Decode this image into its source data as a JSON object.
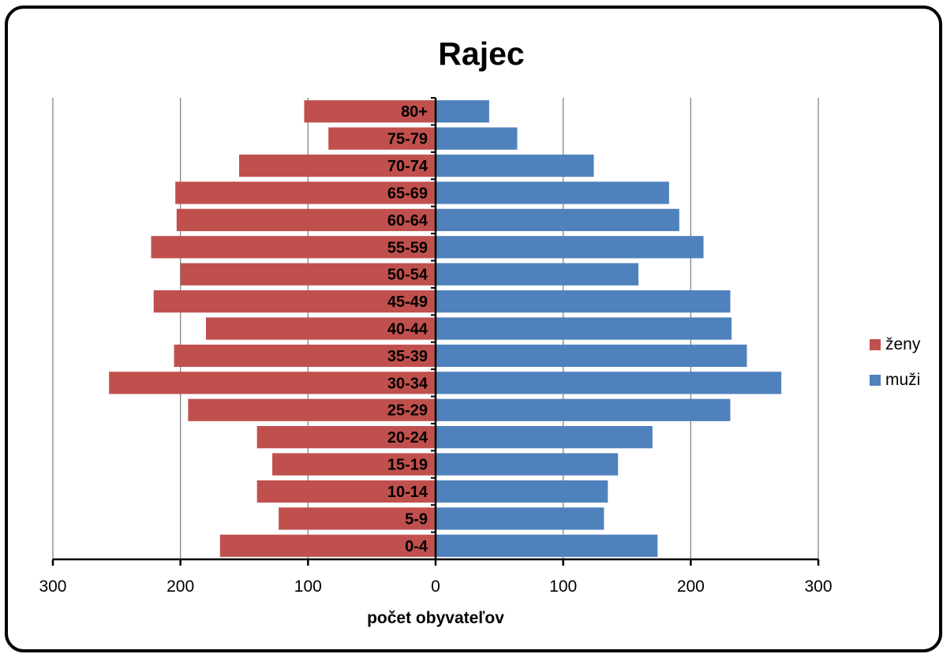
{
  "chart_data": {
    "type": "bar",
    "orientation": "horizontal",
    "layout": "population-pyramid",
    "title": "Rajec",
    "xlabel": "počet obyvateľov",
    "ylabel": "",
    "categories": [
      "0-4",
      "5-9",
      "10-14",
      "15-19",
      "20-24",
      "25-29",
      "30-34",
      "35-39",
      "40-44",
      "45-49",
      "50-54",
      "55-59",
      "60-64",
      "65-69",
      "70-74",
      "75-79",
      "80+"
    ],
    "series": [
      {
        "name": "ženy",
        "side": "left",
        "color": "#C0504D",
        "values": [
          169,
          123,
          140,
          128,
          140,
          194,
          256,
          205,
          180,
          221,
          200,
          223,
          203,
          204,
          154,
          84,
          103
        ]
      },
      {
        "name": "muži",
        "side": "right",
        "color": "#4F81BD",
        "values": [
          174,
          132,
          135,
          143,
          170,
          231,
          271,
          244,
          232,
          231,
          159,
          210,
          191,
          183,
          124,
          64,
          42
        ]
      }
    ],
    "x_ticks": [
      -300,
      -200,
      -100,
      0,
      100,
      200,
      300
    ],
    "x_tick_labels": [
      "300",
      "200",
      "100",
      "0",
      "100",
      "200",
      "300"
    ],
    "xlim": [
      -300,
      300
    ],
    "grid": "vertical",
    "legend_position": "right",
    "gridline_color": "#868686"
  }
}
